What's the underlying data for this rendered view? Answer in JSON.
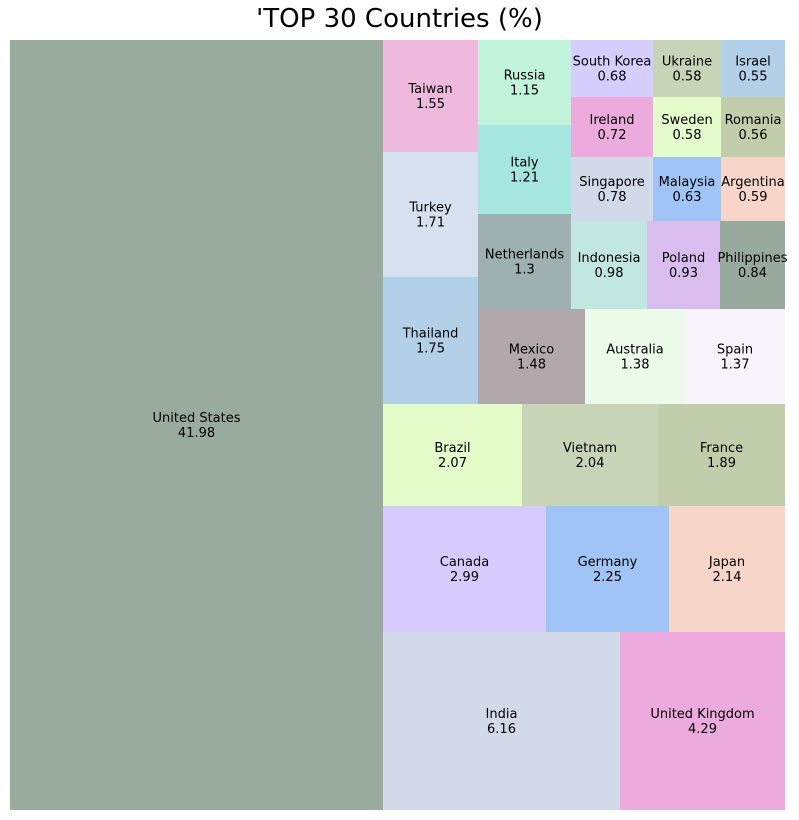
{
  "chart_data": {
    "type": "treemap",
    "title": "'TOP 30 Countries (%)",
    "items": [
      {
        "label": "United States",
        "value": 41.98,
        "color": "#99aa9e"
      },
      {
        "label": "India",
        "value": 6.16,
        "color": "#d2d9e9"
      },
      {
        "label": "United Kingdom",
        "value": 4.29,
        "color": "#ecabdc"
      },
      {
        "label": "Canada",
        "value": 2.99,
        "color": "#d5ccfd"
      },
      {
        "label": "Germany",
        "value": 2.25,
        "color": "#a0c4f6"
      },
      {
        "label": "Japan",
        "value": 2.14,
        "color": "#f7d6c9"
      },
      {
        "label": "Brazil",
        "value": 2.07,
        "color": "#e4fcc9"
      },
      {
        "label": "Vietnam",
        "value": 2.04,
        "color": "#c8d4b8"
      },
      {
        "label": "France",
        "value": 1.89,
        "color": "#c2ceab"
      },
      {
        "label": "Thailand",
        "value": 1.75,
        "color": "#b2d0e7"
      },
      {
        "label": "Turkey",
        "value": 1.71,
        "color": "#d6e0ee"
      },
      {
        "label": "Taiwan",
        "value": 1.55,
        "color": "#efb9dd"
      },
      {
        "label": "Mexico",
        "value": 1.48,
        "color": "#b1a8ab"
      },
      {
        "label": "Australia",
        "value": 1.38,
        "color": "#edfcea"
      },
      {
        "label": "Spain",
        "value": 1.37,
        "color": "#f7f4fb"
      },
      {
        "label": "Netherlands",
        "value": 1.3,
        "color": "#9fb0b1"
      },
      {
        "label": "Italy",
        "value": 1.21,
        "color": "#a5e6e0"
      },
      {
        "label": "Russia",
        "value": 1.15,
        "color": "#c2f4dc"
      },
      {
        "label": "Indonesia",
        "value": 0.98,
        "color": "#c2e6e0"
      },
      {
        "label": "Poland",
        "value": 0.93,
        "color": "#d9bdee"
      },
      {
        "label": "Philippines",
        "value": 0.84,
        "color": "#98aa9e"
      },
      {
        "label": "Singapore",
        "value": 0.78,
        "color": "#d2d9e9"
      },
      {
        "label": "Ireland",
        "value": 0.72,
        "color": "#ecabdc"
      },
      {
        "label": "South Korea",
        "value": 0.68,
        "color": "#d6cffd"
      },
      {
        "label": "Malaysia",
        "value": 0.63,
        "color": "#a0c4f6"
      },
      {
        "label": "Argentina",
        "value": 0.59,
        "color": "#f7d6c9"
      },
      {
        "label": "Ukraine",
        "value": 0.58,
        "color": "#c8d4b8"
      },
      {
        "label": "Sweden",
        "value": 0.58,
        "color": "#e4fccb"
      },
      {
        "label": "Romania",
        "value": 0.56,
        "color": "#c2ceab"
      },
      {
        "label": "Israel",
        "value": 0.55,
        "color": "#b2d0e7"
      }
    ]
  }
}
